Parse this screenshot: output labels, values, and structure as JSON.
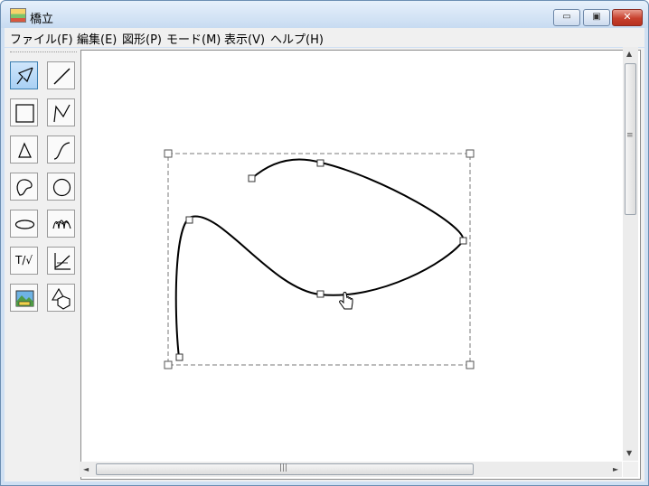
{
  "window": {
    "title": "橋立"
  },
  "title_buttons": {
    "minimize": "▭",
    "maximize": "▣",
    "close": "✕"
  },
  "menu": [
    "ファイル(F)",
    "編集(E)",
    "図形(P)",
    "モード(M)",
    "表示(V)",
    "ヘルプ(H)"
  ],
  "tools": {
    "select": "select-arrow-icon",
    "line": "line-icon",
    "rectangle": "rectangle-icon",
    "polyline": "polyline-icon",
    "triangle": "triangle-icon",
    "curve": "curve-icon",
    "closed_curve": "closed-curve-icon",
    "circle": "circle-icon",
    "ellipse": "ellipse-icon",
    "spiral": "spiral-icon",
    "text_formula_label": "T/√",
    "graph": "graph-icon",
    "image": "image-icon",
    "shapes": "shapes-icon"
  },
  "scrollbar": {
    "grip": "≡",
    "h_grip": "|||",
    "up": "▲",
    "down": "▼",
    "left": "◄",
    "right": "►"
  },
  "colors": {
    "selection_dash": "#7a7a7a",
    "active_tool": "#a9d0f4",
    "curve": "#000000"
  }
}
